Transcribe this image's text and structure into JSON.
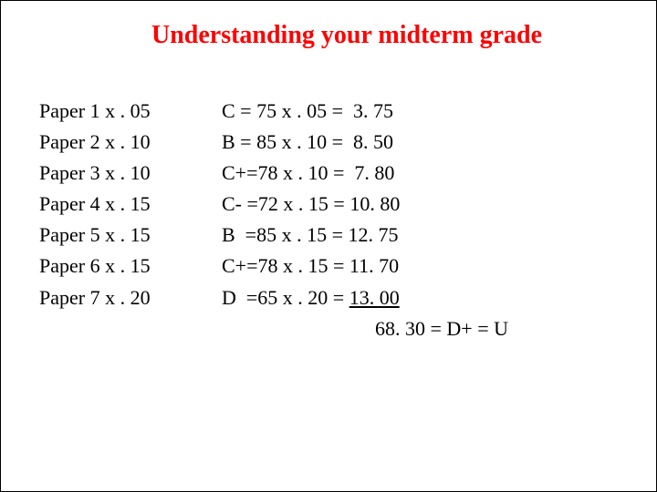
{
  "title": "Understanding your midterm grade",
  "colors": {
    "title": "#ff0000",
    "text": "#000000",
    "background": "#ffffff"
  },
  "typography": {
    "title_fontsize": 28,
    "body_fontsize": 22,
    "font_family": "Times New Roman",
    "title_weight": "bold"
  },
  "left_column": [
    "Paper 1 x . 05",
    "Paper 2 x . 10",
    "Paper 3 x . 10",
    "Paper 4 x . 15",
    "Paper 5 x . 15",
    "Paper 6 x . 15",
    "Paper 7 x . 20"
  ],
  "right_column": [
    "C = 75 x . 05 =  3. 75",
    "B = 85 x . 10 =  8. 50",
    "C+=78 x . 10 =  7. 80",
    "C- =72 x . 15 = 10. 80",
    "B  =85 x . 15 = 12. 75",
    "C+=78 x . 15 = 11. 70"
  ],
  "right_last_prefix": "D  =65 x . 20 = ",
  "right_last_underlined": "13. 00",
  "final_line": "68. 30 = D+ = U"
}
